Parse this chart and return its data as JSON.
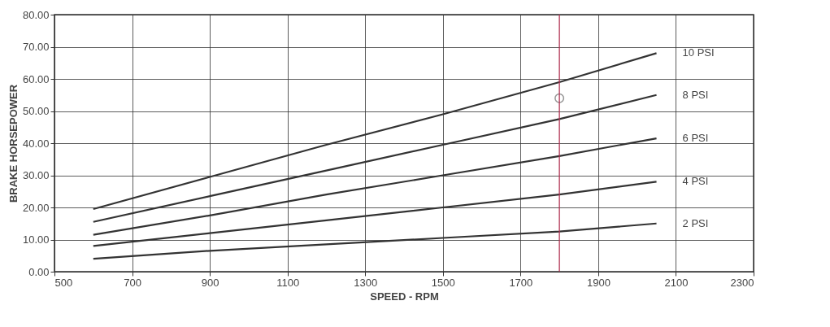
{
  "chart_data": {
    "type": "line",
    "xlabel": "SPEED - RPM",
    "ylabel": "BRAKE HORSEPOWER",
    "x": [
      600,
      900,
      1200,
      1500,
      1800,
      2050
    ],
    "series": [
      {
        "name": "10 PSI",
        "color": "#333333",
        "values": [
          19.5,
          29.5,
          39.5,
          49,
          59,
          68
        ]
      },
      {
        "name": "8 PSI",
        "color": "#333333",
        "values": [
          15.5,
          23.5,
          31.5,
          39.5,
          47.5,
          55
        ]
      },
      {
        "name": "6 PSI",
        "color": "#333333",
        "values": [
          11.5,
          17.5,
          24,
          30,
          36,
          41.5
        ]
      },
      {
        "name": "4 PSI",
        "color": "#333333",
        "values": [
          8,
          12,
          16,
          20,
          24,
          28
        ]
      },
      {
        "name": "2 PSI",
        "color": "#333333",
        "values": [
          4,
          6.5,
          8.5,
          10.5,
          12.5,
          15
        ]
      },
      {
        "type": "scatter",
        "x": [
          1800
        ],
        "values": [
          54
        ],
        "color": "#666666",
        "marker": "circle"
      }
    ],
    "xlim": [
      500,
      2300
    ],
    "xticks": [
      500,
      700,
      900,
      1100,
      1300,
      1500,
      1700,
      1900,
      2100,
      2300
    ],
    "ylim": [
      0,
      80
    ],
    "yticks": [
      {
        "value": 0,
        "label": "0.00"
      },
      {
        "value": 10,
        "label": "10.00"
      },
      {
        "value": 20,
        "label": "20.00"
      },
      {
        "value": 30,
        "label": "30.00"
      },
      {
        "value": 40,
        "label": "40.00"
      },
      {
        "value": 50,
        "label": "50.00"
      },
      {
        "value": 60,
        "label": "60.00"
      },
      {
        "value": 70,
        "label": "70.00"
      },
      {
        "value": 80,
        "label": "80.00"
      }
    ],
    "ref_lines": [
      {
        "axis": "x",
        "value": 1800,
        "color": "#b03050"
      }
    ],
    "grid": true,
    "marker": "none",
    "line_style": "solid"
  }
}
